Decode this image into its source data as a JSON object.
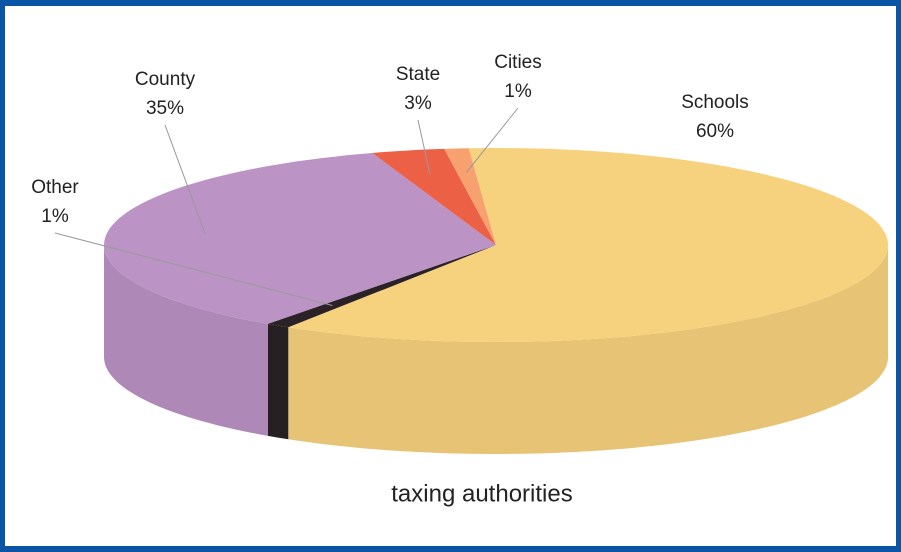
{
  "chart_data": {
    "type": "pie",
    "title": "taxing authorities",
    "categories": [
      "Schools",
      "Other",
      "County",
      "State",
      "Cities"
    ],
    "values": [
      60,
      1,
      35,
      3,
      1
    ],
    "value_labels": [
      "60%",
      "1%",
      "35%",
      "3%",
      "1%"
    ],
    "colors": [
      "#f7d27e",
      "#2a2226",
      "#bb93c5",
      "#ec6146",
      "#f7a070"
    ]
  }
}
